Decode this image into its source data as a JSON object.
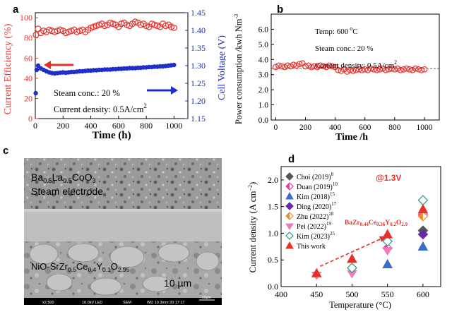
{
  "chart_data": [
    {
      "panel": "a",
      "type": "scatter",
      "xlabel": "Time (h)",
      "ylabel_left": "Current Efficiency (%)",
      "ylabel_right": "Cell Voltage (V)",
      "xlim": [
        0,
        1100
      ],
      "ylim_left": [
        0,
        105
      ],
      "ylim_right": [
        1.15,
        1.45
      ],
      "x_ticks": [
        0,
        200,
        400,
        600,
        800,
        1000
      ],
      "y_left_ticks": [
        0,
        20,
        40,
        60,
        80,
        100
      ],
      "y_right_ticks": [
        1.15,
        1.2,
        1.25,
        1.3,
        1.35,
        1.4,
        1.45
      ],
      "y_right_tick_labels": [
        "1.15",
        "1.20",
        "1.25",
        "1.30",
        "1.35",
        "1.40",
        "1.45"
      ],
      "annotations": [
        "Steam conc.: 20 %",
        "Current density: 0.5A/cm",
        "2"
      ],
      "series": [
        {
          "name": "Current efficiency",
          "axis": "left",
          "color": "#e8302a",
          "marker": "open-circle",
          "x": [
            5,
            20,
            40,
            60,
            80,
            100,
            120,
            140,
            160,
            180,
            200,
            220,
            240,
            260,
            280,
            300,
            320,
            340,
            360,
            380,
            400,
            420,
            440,
            460,
            480,
            500,
            520,
            540,
            560,
            580,
            600,
            620,
            640,
            660,
            680,
            700,
            720,
            740,
            760,
            780,
            800,
            820,
            840,
            860,
            880,
            900,
            920,
            940,
            960,
            980,
            1000
          ],
          "y": [
            83,
            89,
            85,
            87,
            86,
            88,
            87,
            86,
            87,
            88,
            87,
            85,
            86,
            87,
            88,
            86,
            87,
            88,
            86,
            88,
            90,
            91,
            92,
            93,
            94,
            92,
            93,
            95,
            94,
            93,
            91,
            94,
            95,
            93,
            92,
            94,
            96,
            95,
            93,
            94,
            92,
            91,
            94,
            93,
            92,
            91,
            94,
            92,
            93,
            91,
            90
          ]
        },
        {
          "name": "Cell voltage",
          "axis": "right",
          "color": "#1f2fc9",
          "marker": "filled-circle",
          "x": [
            3,
            10,
            20,
            40,
            60,
            80,
            100,
            120,
            140,
            160,
            180,
            200,
            220,
            240,
            260,
            280,
            300,
            320,
            340,
            360,
            380,
            400,
            420,
            440,
            460,
            480,
            500,
            520,
            540,
            560,
            580,
            600,
            620,
            640,
            660,
            680,
            700,
            720,
            740,
            760,
            780,
            800,
            820,
            840,
            860,
            880,
            900,
            920,
            940,
            960,
            980,
            1000
          ],
          "y": [
            1.222,
            1.288,
            1.3,
            1.292,
            1.288,
            1.284,
            1.281,
            1.279,
            1.278,
            1.279,
            1.28,
            1.281,
            1.28,
            1.281,
            1.282,
            1.282,
            1.283,
            1.284,
            1.284,
            1.285,
            1.286,
            1.286,
            1.287,
            1.287,
            1.288,
            1.288,
            1.289,
            1.289,
            1.289,
            1.29,
            1.29,
            1.291,
            1.291,
            1.292,
            1.292,
            1.293,
            1.293,
            1.293,
            1.294,
            1.294,
            1.295,
            1.295,
            1.296,
            1.296,
            1.297,
            1.297,
            1.298,
            1.298,
            1.299,
            1.3,
            1.301,
            1.302
          ]
        }
      ]
    },
    {
      "panel": "b",
      "type": "scatter",
      "xlabel": "Time /h",
      "ylabel": "Power consumption /kwh Nm",
      "ylabel_sup": "-3",
      "xlim": [
        -30,
        1100
      ],
      "ylim": [
        0,
        7
      ],
      "x_ticks": [
        0,
        200,
        400,
        600,
        800,
        1000
      ],
      "y_ticks": [
        0.0,
        1.0,
        2.0,
        3.0,
        4.0,
        5.0,
        6.0
      ],
      "y_tick_labels": [
        "0.0",
        "1.0",
        "2.0",
        "3.0",
        "4.0",
        "5.0",
        "6.0"
      ],
      "annotations": [
        "Temp: 600",
        "o",
        "C",
        "Steam conc.: 20 %",
        "Current density: 0.5A/cm",
        "2"
      ],
      "reference_line": 3.4,
      "series": [
        {
          "name": "Power consumption",
          "color": "#e8302a",
          "marker": "open-circle",
          "x": [
            0,
            20,
            40,
            60,
            80,
            100,
            120,
            140,
            160,
            180,
            200,
            220,
            240,
            260,
            280,
            300,
            320,
            340,
            360,
            380,
            400,
            420,
            440,
            460,
            480,
            500,
            520,
            540,
            560,
            580,
            600,
            620,
            640,
            660,
            680,
            700,
            720,
            740,
            760,
            780,
            800,
            820,
            840,
            860,
            880,
            900,
            920,
            940,
            960,
            980,
            1000
          ],
          "y": [
            3.5,
            3.6,
            3.55,
            3.5,
            3.6,
            3.55,
            3.65,
            3.6,
            3.7,
            3.75,
            3.55,
            3.6,
            3.5,
            3.55,
            3.5,
            3.6,
            3.55,
            3.5,
            3.6,
            3.55,
            3.5,
            3.3,
            3.25,
            3.35,
            3.2,
            3.3,
            3.25,
            3.3,
            3.35,
            3.3,
            3.35,
            3.3,
            3.4,
            3.35,
            3.3,
            3.35,
            3.4,
            3.3,
            3.35,
            3.4,
            3.35,
            3.4,
            3.3,
            3.35,
            3.4,
            3.35,
            3.3,
            3.4,
            3.35,
            3.3,
            3.35
          ]
        }
      ]
    },
    {
      "panel": "d",
      "type": "scatter",
      "xlabel": "Temperature (°C)",
      "ylabel": "Current density (A cm",
      "ylabel_sup": "−2",
      "ylabel_end": ")",
      "xlim": [
        400,
        625
      ],
      "ylim": [
        0,
        2.25
      ],
      "x_ticks": [
        400,
        450,
        500,
        550,
        600
      ],
      "y_ticks": [
        0.0,
        0.5,
        1.0,
        1.5,
        2.0
      ],
      "y_tick_labels": [
        "0.0",
        "0.5",
        "1.0",
        "1.5",
        "2.0"
      ],
      "condition": "@1.3V",
      "annotation_label": [
        "BaZr",
        "0.44",
        "Ce",
        "0.36",
        "Y",
        "0.2",
        "O",
        "2.9"
      ],
      "series": [
        {
          "name": "Choi (2019)",
          "ref": "8",
          "marker": "diamond",
          "fill": "#555555",
          "stroke": "#555555",
          "x": [
            600
          ],
          "y": [
            1.05
          ]
        },
        {
          "name": "Duan (2019)",
          "ref": "10",
          "marker": "diamond-half",
          "fill": "#e83aa8",
          "stroke": "#e83aa8",
          "x": [
            550,
            600
          ],
          "y": [
            0.72,
            1.35
          ]
        },
        {
          "name": "Kim (2018)",
          "ref": "15",
          "marker": "triangle",
          "fill": "#3a6fc9",
          "stroke": "#3a6fc9",
          "x": [
            550,
            600
          ],
          "y": [
            0.42,
            0.75
          ]
        },
        {
          "name": "Ding (2020)",
          "ref": "17",
          "marker": "diamond",
          "fill": "#6a2aa8",
          "stroke": "#6a2aa8",
          "x": [
            600
          ],
          "y": [
            0.98
          ]
        },
        {
          "name": "Zhu (2022)",
          "ref": "18",
          "marker": "diamond-half",
          "fill": "#f08a2a",
          "stroke": "#f08a2a",
          "x": [
            600
          ],
          "y": [
            1.32
          ]
        },
        {
          "name": "Pei (2022)",
          "ref": "19",
          "marker": "triangle-down",
          "fill": "#f07ab8",
          "stroke": "#f07ab8",
          "x": [
            450,
            500,
            550
          ],
          "y": [
            0.22,
            0.25,
            0.68
          ]
        },
        {
          "name": "Kim (2023)",
          "ref": "25",
          "marker": "diamond-open",
          "fill": "none",
          "stroke": "#2a9a8a",
          "x": [
            500,
            550,
            600
          ],
          "y": [
            0.35,
            0.85,
            1.62
          ]
        },
        {
          "name": "This work",
          "ref": "",
          "marker": "triangle-red",
          "fill": "#e8302a",
          "stroke": "#e8302a",
          "x": [
            450,
            500,
            550,
            600
          ],
          "y": [
            0.25,
            0.52,
            0.98,
            1.45
          ]
        }
      ]
    }
  ],
  "panel_labels": {
    "a": "a",
    "b": "b",
    "c": "c",
    "d": "d"
  },
  "micrograph": {
    "upper_label_parts": [
      "Ba",
      "0.5",
      "La",
      "0.5",
      "CoO",
      "3"
    ],
    "upper_label_line2": "Steam electrode",
    "lower_label_parts": [
      "NiO-SrZr",
      "0.5",
      "Ce",
      "0.4",
      "Y",
      "0.1",
      "O",
      "2.95"
    ],
    "scale_text": "10 µm",
    "footer_scale": "10µm",
    "footer_items": [
      "x2,500",
      "10.0kV LED",
      "SEM",
      "WD 10.3mm 20:17:17"
    ]
  }
}
